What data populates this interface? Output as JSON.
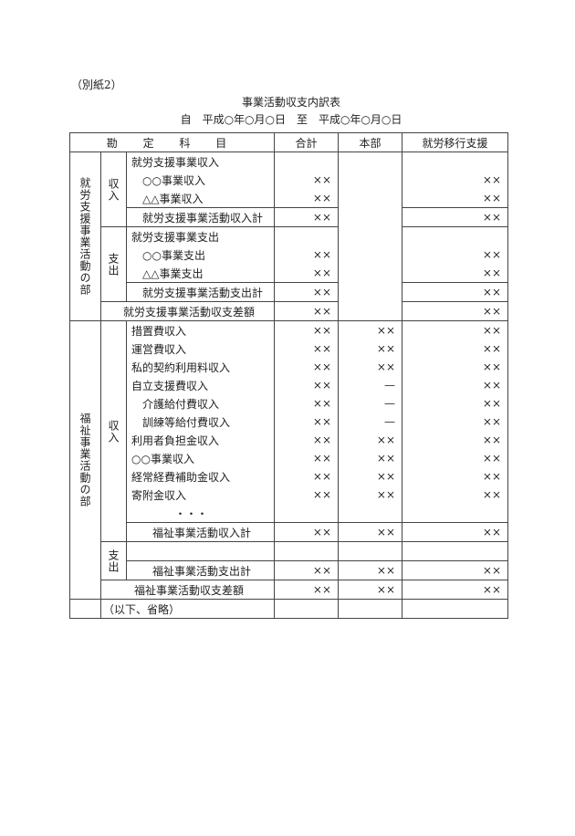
{
  "note": "（別紙2）",
  "title": "事業活動収支内訳表",
  "period": "自　平成○年○月○日　至　平成○年○月○日",
  "header": {
    "account": "勘 定 科 目",
    "total": "合計",
    "hq": "本部",
    "service": "就労移行支援"
  },
  "section1": {
    "label": "就労支援事業活動の部",
    "income_label": "収入",
    "income_rows": [
      {
        "name": "就労支援事業収入",
        "total": "",
        "service": ""
      },
      {
        "name": "○○事業収入",
        "total": "××",
        "service": "××"
      },
      {
        "name": "△△事業収入",
        "total": "××",
        "service": "××"
      }
    ],
    "income_total": {
      "name": "就労支援事業活動収入計",
      "total": "××",
      "service": "××"
    },
    "expense_label": "支出",
    "expense_rows": [
      {
        "name": "就労支援事業支出",
        "total": "",
        "service": ""
      },
      {
        "name": "○○事業支出",
        "total": "××",
        "service": "××"
      },
      {
        "name": "△△事業支出",
        "total": "××",
        "service": "××"
      }
    ],
    "expense_total": {
      "name": "就労支援事業活動支出計",
      "total": "××",
      "service": "××"
    },
    "difference": {
      "name": "就労支援事業活動収支差額",
      "total": "××",
      "service": "××"
    }
  },
  "section2": {
    "label": "福祉事業活動の部",
    "income_label": "収入",
    "income_rows": [
      {
        "name": "措置費収入",
        "total": "××",
        "hq": "××",
        "service": "××"
      },
      {
        "name": "運営費収入",
        "total": "××",
        "hq": "××",
        "service": "××"
      },
      {
        "name": "私的契約利用料収入",
        "total": "××",
        "hq": "××",
        "service": "××"
      },
      {
        "name": "自立支援費収入",
        "total": "××",
        "hq": "—",
        "service": "××"
      },
      {
        "name": "介護給付費収入",
        "total": "××",
        "hq": "—",
        "service": "××"
      },
      {
        "name": "訓練等給付費収入",
        "total": "××",
        "hq": "—",
        "service": "××"
      },
      {
        "name": "利用者負担金収入",
        "total": "××",
        "hq": "××",
        "service": "××"
      },
      {
        "name": "○○事業収入",
        "total": "××",
        "hq": "××",
        "service": "××"
      },
      {
        "name": "経常経費補助金収入",
        "total": "××",
        "hq": "××",
        "service": "××"
      },
      {
        "name": "寄附金収入",
        "total": "××",
        "hq": "××",
        "service": "××"
      }
    ],
    "ellipsis": "・・・",
    "income_total": {
      "name": "福祉事業活動収入計",
      "total": "××",
      "hq": "××",
      "service": "××"
    },
    "expense_label": "支出",
    "expense_total": {
      "name": "福祉事業活動支出計",
      "total": "××",
      "hq": "××",
      "service": "××"
    },
    "difference": {
      "name": "福祉事業活動収支差額",
      "total": "××",
      "hq": "××",
      "service": "××"
    }
  },
  "omitted": "（以下、省略）"
}
